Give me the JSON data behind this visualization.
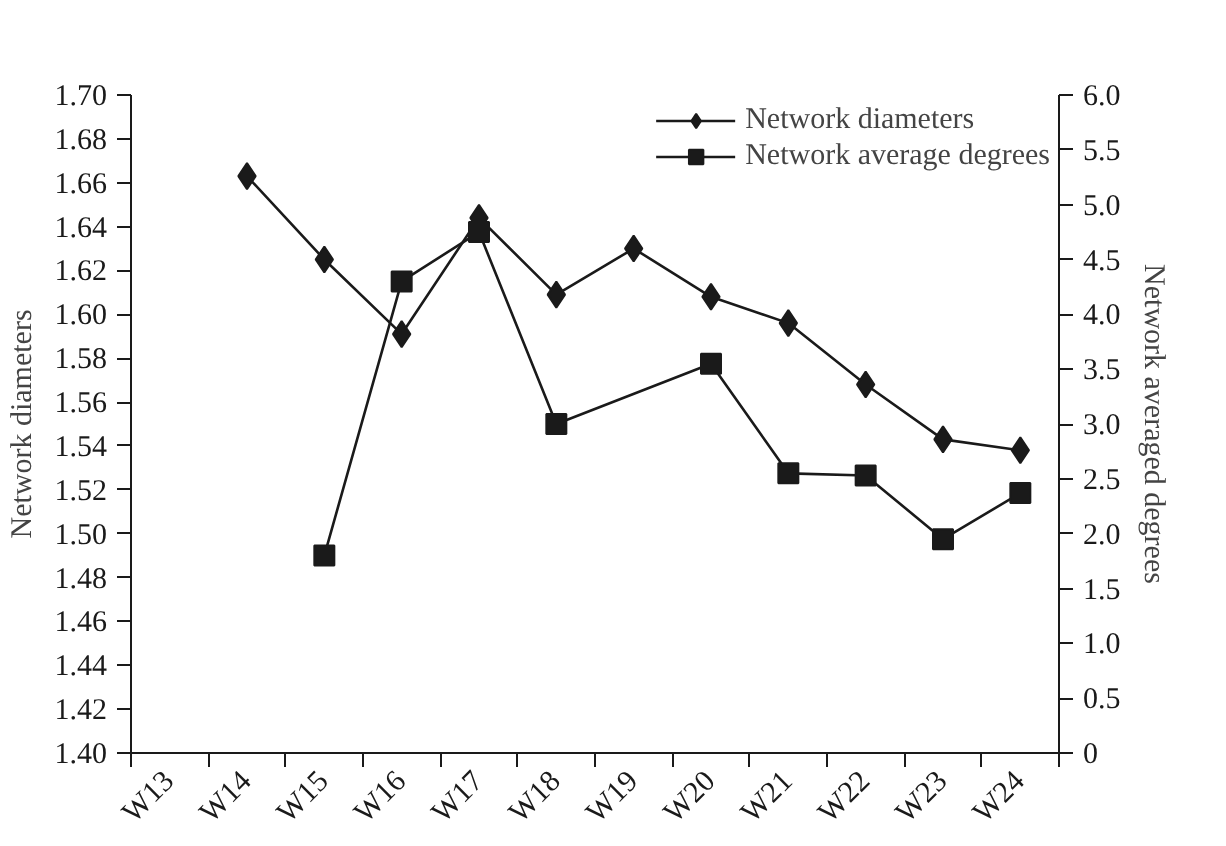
{
  "chart_data": {
    "type": "line",
    "ylabel": "Network diameters",
    "y2label": "Network averaged degrees",
    "categories": [
      "W13",
      "W14",
      "W15",
      "W16",
      "W17",
      "W18",
      "W19",
      "W20",
      "W21",
      "W22",
      "W23",
      "W24"
    ],
    "series": [
      {
        "name": "Network diameters",
        "color": "#1a1a1a",
        "marker": "diamond",
        "values": [
          null,
          1.663,
          1.625,
          1.591,
          1.644,
          1.609,
          1.63,
          1.608,
          1.596,
          1.568,
          1.543,
          1.538
        ]
      },
      {
        "name": "Network average degrees",
        "color": "#1a1a1a",
        "marker": "square",
        "axis": "y2",
        "values": [
          null,
          null,
          1.8,
          4.3,
          4.75,
          3.0,
          null,
          3.55,
          2.55,
          2.53,
          1.95,
          2.37
        ]
      }
    ],
    "ylim": [
      1.4,
      1.7
    ],
    "yticks": [
      {
        "value": 1.4,
        "label": "1.40"
      },
      {
        "value": 1.42,
        "label": "1.42"
      },
      {
        "value": 1.44,
        "label": "1.44"
      },
      {
        "value": 1.46,
        "label": "1.46"
      },
      {
        "value": 1.48,
        "label": "1.48"
      },
      {
        "value": 1.5,
        "label": "1.50"
      },
      {
        "value": 1.52,
        "label": "1.52"
      },
      {
        "value": 1.54,
        "label": "1.54"
      },
      {
        "value": 1.56,
        "label": "1.56"
      },
      {
        "value": 1.58,
        "label": "1.58"
      },
      {
        "value": 1.6,
        "label": "1.60"
      },
      {
        "value": 1.62,
        "label": "1.62"
      },
      {
        "value": 1.64,
        "label": "1.64"
      },
      {
        "value": 1.66,
        "label": "1.66"
      },
      {
        "value": 1.68,
        "label": "1.68"
      },
      {
        "value": 1.7,
        "label": "1.70"
      }
    ],
    "y2lim": [
      0,
      6.0
    ],
    "y2ticks": [
      0,
      {
        "value": 0.5,
        "label": "0.5"
      },
      {
        "value": 1.0,
        "label": "1.0"
      },
      {
        "value": 1.5,
        "label": "1.5"
      },
      {
        "value": 2.0,
        "label": "2.0"
      },
      {
        "value": 2.5,
        "label": "2.5"
      },
      {
        "value": 3.0,
        "label": "3.0"
      },
      {
        "value": 3.5,
        "label": "3.5"
      },
      {
        "value": 4.0,
        "label": "4.0"
      },
      {
        "value": 4.5,
        "label": "4.5"
      },
      {
        "value": 5.0,
        "label": "5.0"
      },
      {
        "value": 5.5,
        "label": "5.5"
      },
      {
        "value": 6.0,
        "label": "6.0"
      }
    ],
    "grid": false,
    "legend": "top right",
    "line_style": "solid"
  }
}
